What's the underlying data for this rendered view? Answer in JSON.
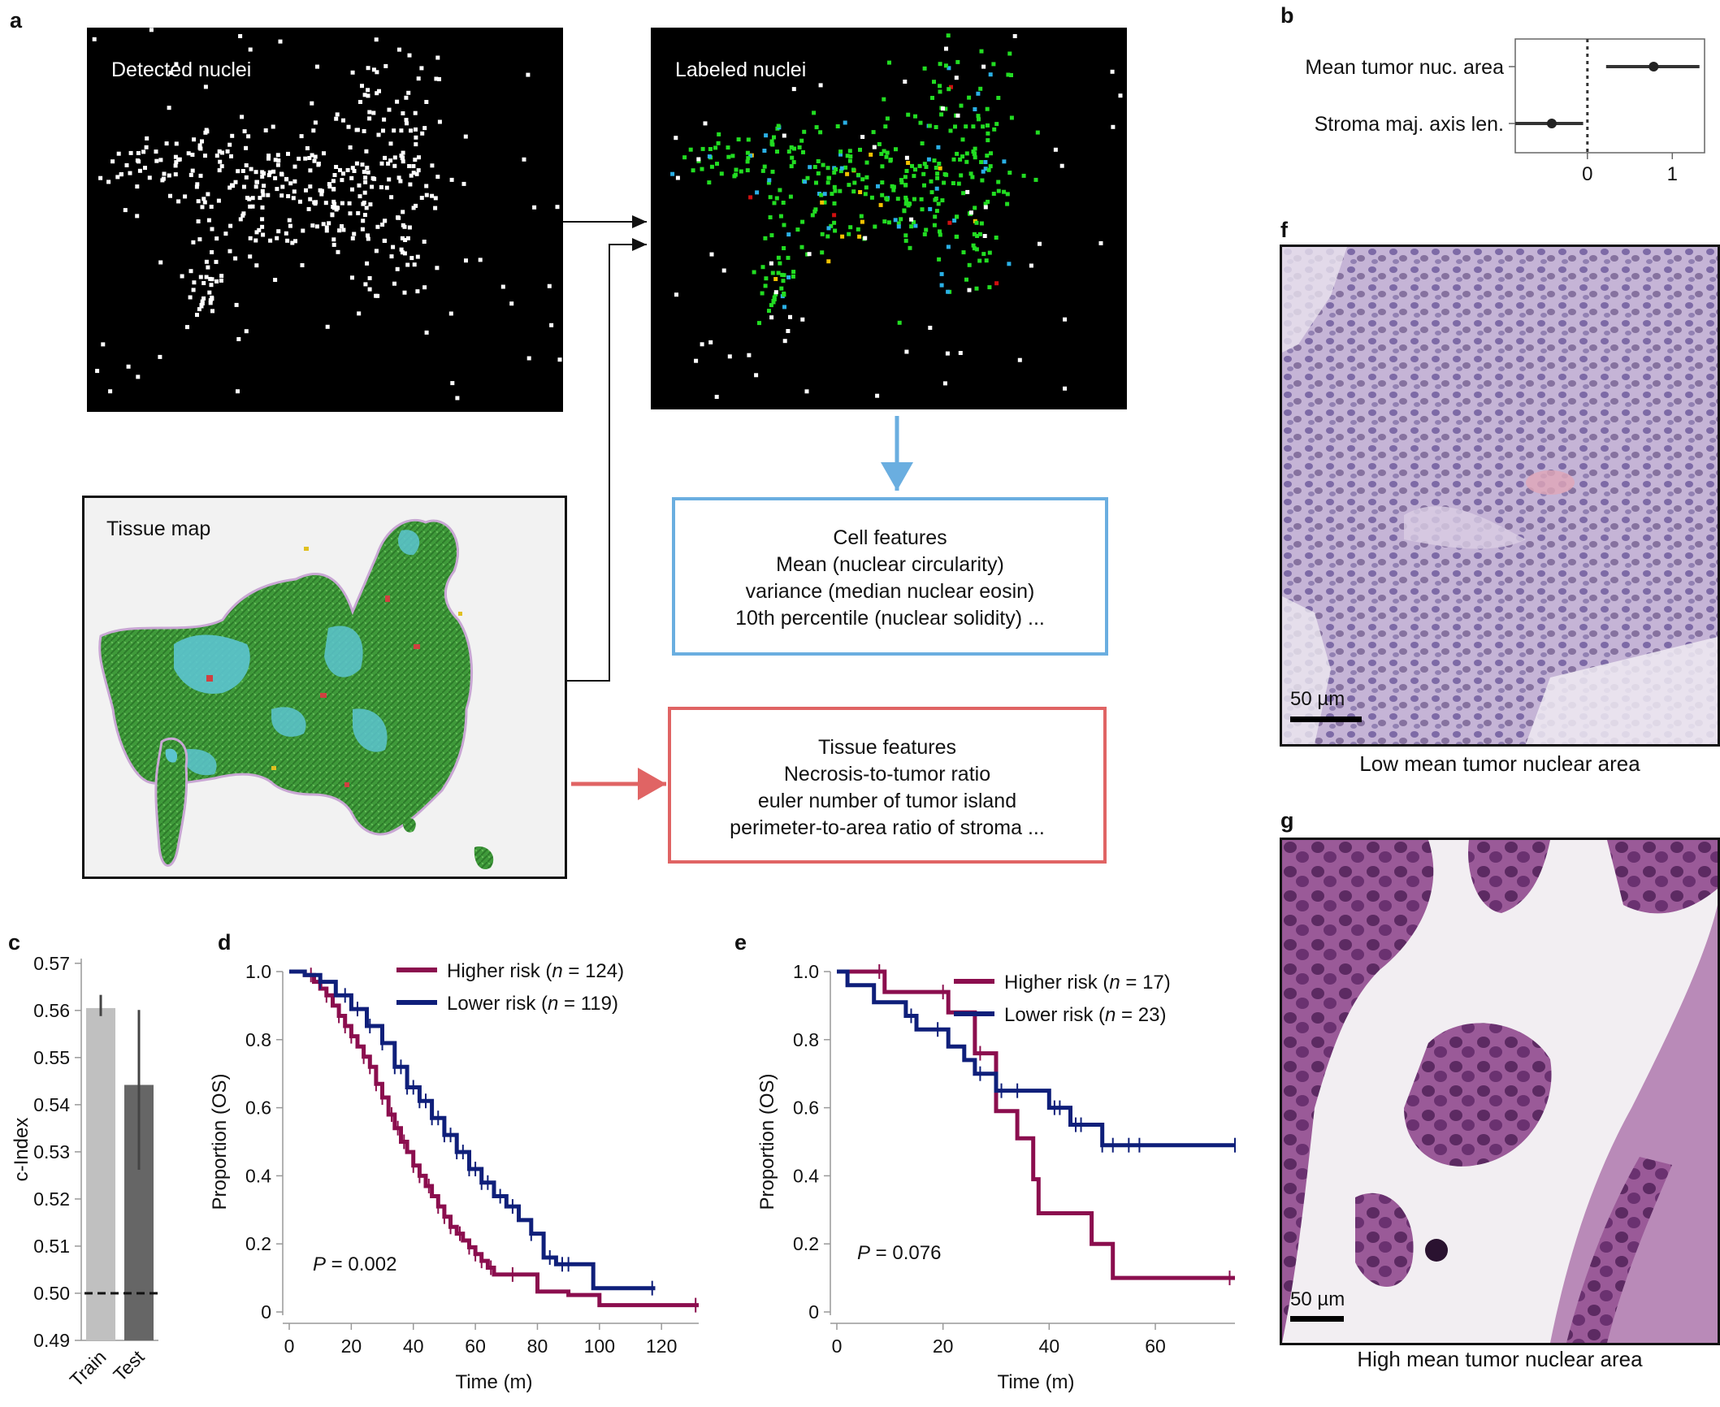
{
  "panels": {
    "a": "a",
    "b": "b",
    "c": "c",
    "d": "d",
    "e": "e",
    "f": "f",
    "g": "g"
  },
  "panel_a": {
    "detected_label": "Detected nuclei",
    "labeled_label": "Labeled nuclei",
    "tissue_label": "Tissue map",
    "cell_features": {
      "title": "Cell features",
      "lines": [
        "Mean (nuclear circularity)",
        "variance (median nuclear eosin)",
        "10th percentile (nuclear solidity) ..."
      ],
      "color": "#6aaee0"
    },
    "tissue_features": {
      "title": "Tissue features",
      "lines": [
        "Necrosis-to-tumor ratio",
        "euler number of tumor island",
        "perimeter-to-area ratio of stroma ..."
      ],
      "color": "#e06464"
    },
    "nuclei_colors": {
      "tumor": "#22dd22",
      "stroma": "#2ab0e6",
      "lymph": "#f2c200",
      "necrosis": "#d01010",
      "other": "#ffffff"
    }
  },
  "chart_data": [
    {
      "panel": "b",
      "type": "scatter",
      "categories": [
        "Mean tumor nuc. area",
        "Stroma maj. axis len."
      ],
      "points": [
        {
          "label": "Mean tumor nuc. area",
          "value": 0.78,
          "ci": [
            0.22,
            1.32
          ]
        },
        {
          "label": "Stroma maj. axis len.",
          "value": -0.42,
          "ci": [
            -0.85,
            -0.05
          ]
        }
      ],
      "xticks": [
        0,
        1
      ],
      "xlim": [
        -0.85,
        1.38
      ],
      "reference_line": 0
    },
    {
      "panel": "c",
      "type": "bar",
      "categories": [
        "Train",
        "Test"
      ],
      "values": [
        0.5605,
        0.5442
      ],
      "errors": [
        [
          0.5588,
          0.5633
        ],
        [
          0.5262,
          0.5601
        ]
      ],
      "colors": [
        "#c0c0c0",
        "#666666"
      ],
      "ylabel": "c-Index",
      "ylim": [
        0.49,
        0.571
      ],
      "yticks": [
        0.49,
        0.5,
        0.51,
        0.52,
        0.53,
        0.54,
        0.55,
        0.56,
        0.57
      ],
      "baseline": 0.5
    },
    {
      "panel": "d",
      "type": "line",
      "xlabel": "Time (m)",
      "ylabel": "Proportion (OS)",
      "xlim": [
        0,
        132
      ],
      "ylim": [
        0,
        1.0
      ],
      "xticks": [
        0,
        20,
        40,
        60,
        80,
        100,
        120
      ],
      "yticks": [
        0,
        0.2,
        0.4,
        0.6,
        0.8,
        1.0
      ],
      "annotation": {
        "prefix": "P",
        "text": " = 0.002"
      },
      "series": [
        {
          "name": "Higher risk",
          "n_text": "124",
          "color": "#8b0e4e",
          "x": [
            0,
            5,
            8,
            10,
            12,
            14,
            16,
            18,
            20,
            22,
            24,
            26,
            28,
            30,
            32,
            34,
            36,
            38,
            40,
            42,
            44,
            46,
            48,
            50,
            52,
            54,
            56,
            58,
            60,
            62,
            64,
            66,
            72,
            80,
            90,
            100,
            110,
            132
          ],
          "y": [
            1.0,
            0.99,
            0.97,
            0.95,
            0.93,
            0.9,
            0.87,
            0.84,
            0.81,
            0.78,
            0.75,
            0.72,
            0.67,
            0.63,
            0.58,
            0.54,
            0.5,
            0.47,
            0.43,
            0.4,
            0.37,
            0.34,
            0.31,
            0.28,
            0.25,
            0.23,
            0.21,
            0.19,
            0.17,
            0.15,
            0.13,
            0.11,
            0.11,
            0.06,
            0.05,
            0.02,
            0.02,
            0.02
          ],
          "censor_x": [
            7,
            12,
            16,
            18,
            20,
            24,
            26,
            28,
            30,
            33,
            35,
            37,
            40,
            42,
            45,
            48,
            50,
            52,
            55,
            58,
            60,
            62,
            65,
            72,
            131
          ]
        },
        {
          "name": "Lower risk",
          "n_text": "119",
          "color": "#0f1f7a",
          "x": [
            0,
            5,
            10,
            15,
            20,
            25,
            30,
            34,
            38,
            42,
            46,
            50,
            54,
            58,
            62,
            66,
            70,
            74,
            78,
            82,
            86,
            90,
            98,
            118
          ],
          "y": [
            1.0,
            0.99,
            0.97,
            0.93,
            0.89,
            0.84,
            0.79,
            0.72,
            0.66,
            0.62,
            0.57,
            0.52,
            0.47,
            0.42,
            0.38,
            0.34,
            0.31,
            0.27,
            0.23,
            0.16,
            0.14,
            0.14,
            0.07,
            0.07
          ],
          "censor_x": [
            10,
            18,
            22,
            26,
            30,
            34,
            36,
            38,
            40,
            42,
            44,
            46,
            48,
            50,
            52,
            54,
            56,
            58,
            60,
            62,
            64,
            68,
            72,
            78,
            84,
            88,
            90,
            117
          ]
        }
      ]
    },
    {
      "panel": "e",
      "type": "line",
      "xlabel": "Time (m)",
      "ylabel": "Proportion (OS)",
      "xlim": [
        0,
        75
      ],
      "ylim": [
        0,
        1.0
      ],
      "xticks": [
        0,
        20,
        40,
        60
      ],
      "yticks": [
        0,
        0.2,
        0.4,
        0.6,
        0.8,
        1.0
      ],
      "annotation": {
        "prefix": "P",
        "text": " = 0.076"
      },
      "series": [
        {
          "name": "Higher risk",
          "n_text": "17",
          "color": "#8b0e4e",
          "x": [
            0,
            9,
            21,
            26,
            30,
            34,
            37,
            38,
            43,
            48,
            52,
            75
          ],
          "y": [
            1.0,
            0.94,
            0.88,
            0.76,
            0.59,
            0.51,
            0.39,
            0.29,
            0.29,
            0.2,
            0.1,
            0.1
          ],
          "censor_x": [
            8,
            20,
            27,
            74
          ]
        },
        {
          "name": "Lower risk",
          "n_text": "23",
          "color": "#0f1f7a",
          "x": [
            0,
            2,
            7,
            13,
            15,
            21,
            24,
            26,
            28,
            30,
            35,
            40,
            44,
            50,
            52,
            75
          ],
          "y": [
            1.0,
            0.96,
            0.91,
            0.87,
            0.83,
            0.78,
            0.74,
            0.7,
            0.7,
            0.65,
            0.65,
            0.6,
            0.55,
            0.49,
            0.49,
            0.49
          ],
          "censor_x": [
            14,
            19,
            27,
            31,
            34,
            41,
            42,
            45,
            46,
            50,
            52,
            55,
            57,
            75
          ]
        }
      ]
    }
  ],
  "micrographs": {
    "f": {
      "scale_label": "50 µm",
      "caption": "Low mean tumor nuclear area"
    },
    "g": {
      "scale_label": "50 µm",
      "caption": "High mean tumor nuclear area"
    }
  }
}
